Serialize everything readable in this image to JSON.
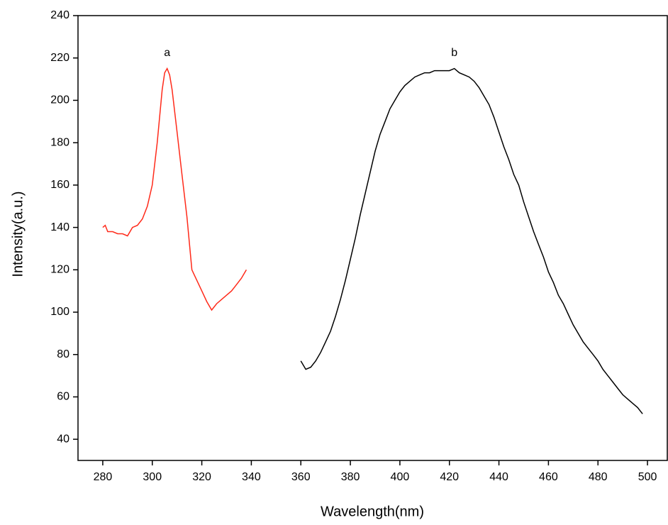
{
  "chart_data": {
    "type": "line",
    "x_label": "Wavelength(nm)",
    "y_label": "Intensity(a.u.)",
    "xlim": [
      270,
      508
    ],
    "ylim": [
      30,
      240
    ],
    "xticks": [
      280,
      300,
      320,
      340,
      360,
      380,
      400,
      420,
      440,
      460,
      480,
      500
    ],
    "yticks": [
      40,
      60,
      80,
      100,
      120,
      140,
      160,
      180,
      200,
      220,
      240
    ],
    "series": [
      {
        "name": "a",
        "color": "#ff2a1a",
        "x": [
          280,
          281,
          282,
          284,
          286,
          288,
          290,
          292,
          294,
          296,
          298,
          300,
          302,
          304,
          305,
          306,
          307,
          308,
          310,
          312,
          314,
          316,
          318,
          320,
          322,
          324,
          326,
          328,
          330,
          332,
          334,
          336,
          338
        ],
        "values": [
          140,
          141,
          138,
          138,
          137,
          137,
          136,
          140,
          141,
          144,
          150,
          160,
          180,
          205,
          213,
          215,
          212,
          205,
          185,
          165,
          145,
          120,
          115,
          110,
          105,
          101,
          104,
          106,
          108,
          110,
          113,
          116,
          120
        ]
      },
      {
        "name": "b",
        "color": "#000000",
        "x": [
          360,
          362,
          364,
          366,
          368,
          370,
          372,
          374,
          376,
          378,
          380,
          382,
          384,
          386,
          388,
          390,
          392,
          394,
          396,
          398,
          400,
          402,
          404,
          406,
          408,
          410,
          412,
          414,
          416,
          418,
          420,
          422,
          424,
          426,
          428,
          430,
          432,
          434,
          436,
          438,
          440,
          442,
          444,
          446,
          448,
          450,
          452,
          454,
          456,
          458,
          460,
          462,
          464,
          466,
          468,
          470,
          472,
          474,
          476,
          478,
          480,
          482,
          484,
          486,
          488,
          490,
          492,
          494,
          496,
          498
        ],
        "values": [
          77,
          73,
          74,
          77,
          81,
          86,
          91,
          98,
          106,
          115,
          125,
          135,
          146,
          156,
          166,
          176,
          184,
          190,
          196,
          200,
          204,
          207,
          209,
          211,
          212,
          213,
          213,
          214,
          214,
          214,
          214,
          215,
          213,
          212,
          211,
          209,
          206,
          202,
          198,
          192,
          185,
          178,
          172,
          165,
          160,
          152,
          145,
          138,
          132,
          126,
          119,
          114,
          108,
          104,
          99,
          94,
          90,
          86,
          83,
          80,
          77,
          73,
          70,
          67,
          64,
          61,
          59,
          57,
          55,
          52
        ]
      }
    ]
  }
}
